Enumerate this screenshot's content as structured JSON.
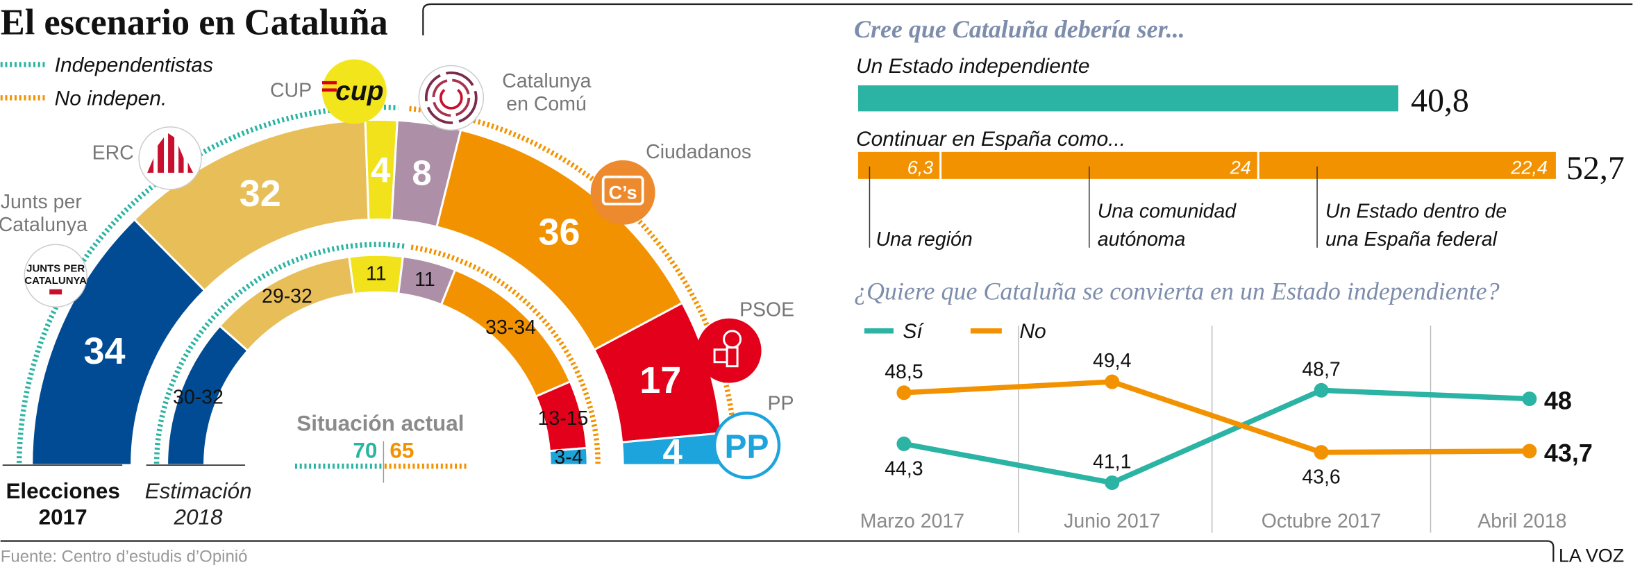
{
  "title": "El escenario en Cataluña",
  "legend": {
    "indep": "Independentistas",
    "noindep": "No indepen."
  },
  "colors": {
    "teal": "#2bb3a3",
    "orange": "#f39200",
    "title_blue": "#7d8dab",
    "gray": "#8a8a8a"
  },
  "chart_data": [
    {
      "type": "hemicycle",
      "title": "Elecciones 2017",
      "label_line1": "Elecciones",
      "label_line2": "2017",
      "parties": [
        {
          "name": "Junts per Catalunya",
          "name_l1": "Junts per",
          "name_l2": "Catalunya",
          "seats": 34,
          "label": "34",
          "color": "#004b93",
          "bloc": "indep",
          "logo": "JUNTS PER CATALUNYA"
        },
        {
          "name": "ERC",
          "seats": 32,
          "label": "32",
          "color": "#e8be58",
          "bloc": "indep",
          "logo": "ERC"
        },
        {
          "name": "CUP",
          "seats": 4,
          "label": "4",
          "color": "#f1e21c",
          "bloc": "indep",
          "logo": "cup"
        },
        {
          "name": "Catalunya en Comú",
          "name_l1": "Catalunya",
          "name_l2": "en Comú",
          "seats": 8,
          "label": "8",
          "color": "#ad90a8",
          "bloc": "noindep",
          "logo": "Comú"
        },
        {
          "name": "Ciudadanos",
          "seats": 36,
          "label": "36",
          "color": "#f39200",
          "bloc": "noindep",
          "logo": "C's"
        },
        {
          "name": "PSOE",
          "seats": 17,
          "label": "17",
          "color": "#e2001a",
          "bloc": "noindep",
          "logo": "PSOE"
        },
        {
          "name": "PP",
          "seats": 4,
          "label": "4",
          "color": "#1ea4dc",
          "bloc": "noindep",
          "logo": "PP"
        }
      ]
    },
    {
      "type": "hemicycle",
      "title": "Estimación 2018",
      "label_line1": "Estimación",
      "label_line2": "2018",
      "parties": [
        {
          "name": "Junts per Catalunya",
          "seats_range": [
            30,
            32
          ],
          "label": "30-32",
          "color": "#004b93"
        },
        {
          "name": "ERC",
          "seats_range": [
            29,
            32
          ],
          "label": "29-32",
          "color": "#e8be58"
        },
        {
          "name": "CUP",
          "seats_range": [
            11,
            11
          ],
          "label": "11",
          "color": "#f1e21c"
        },
        {
          "name": "Catalunya en Comú",
          "seats_range": [
            11,
            11
          ],
          "label": "11",
          "color": "#ad90a8"
        },
        {
          "name": "Ciudadanos",
          "seats_range": [
            33,
            34
          ],
          "label": "33-34",
          "color": "#f39200"
        },
        {
          "name": "PSOE",
          "seats_range": [
            13,
            15
          ],
          "label": "13-15",
          "color": "#e2001a"
        },
        {
          "name": "PP",
          "seats_range": [
            3,
            4
          ],
          "label": "3-4",
          "color": "#1ea4dc"
        }
      ],
      "situacion": {
        "title": "Situación actual",
        "indep": "70",
        "noindep": "65"
      }
    },
    {
      "type": "bar",
      "title": "Cree que Cataluña debería ser...",
      "bars": [
        {
          "label": "Un Estado independiente",
          "total": 40.8,
          "total_label": "40,8",
          "color": "#2bb3a3"
        },
        {
          "label": "Continuar en España como...",
          "total": 52.7,
          "total_label": "52,7",
          "color": "#f39200",
          "segments": [
            {
              "name_l1": "Una región",
              "name_l2": "",
              "value": 6.3,
              "value_label": "6,3"
            },
            {
              "name_l1": "Una comunidad",
              "name_l2": "autónoma",
              "value": 24,
              "value_label": "24"
            },
            {
              "name_l1": "Un Estado dentro de",
              "name_l2": "una España federal",
              "value": 22.4,
              "value_label": "22,4"
            }
          ]
        }
      ]
    },
    {
      "type": "line",
      "title": "¿Quiere que Cataluña se convierta en un Estado independiente?",
      "categories": [
        "Marzo 2017",
        "Junio 2017",
        "Octubre 2017",
        "Abril 2018"
      ],
      "series": [
        {
          "name": "Sí",
          "color": "#2bb3a3",
          "values": [
            44.3,
            41.1,
            48.7,
            48
          ],
          "labels": [
            "44,3",
            "41,1",
            "48,7",
            "48"
          ]
        },
        {
          "name": "No",
          "color": "#f39200",
          "values": [
            48.5,
            49.4,
            43.6,
            43.7
          ],
          "labels": [
            "48,5",
            "49,4",
            "43,6",
            "43,7"
          ]
        }
      ],
      "legend": "top-left"
    }
  ],
  "footer": {
    "source": "Fuente: Centro d’estudis d’Opinió",
    "brand": "LA VOZ"
  }
}
